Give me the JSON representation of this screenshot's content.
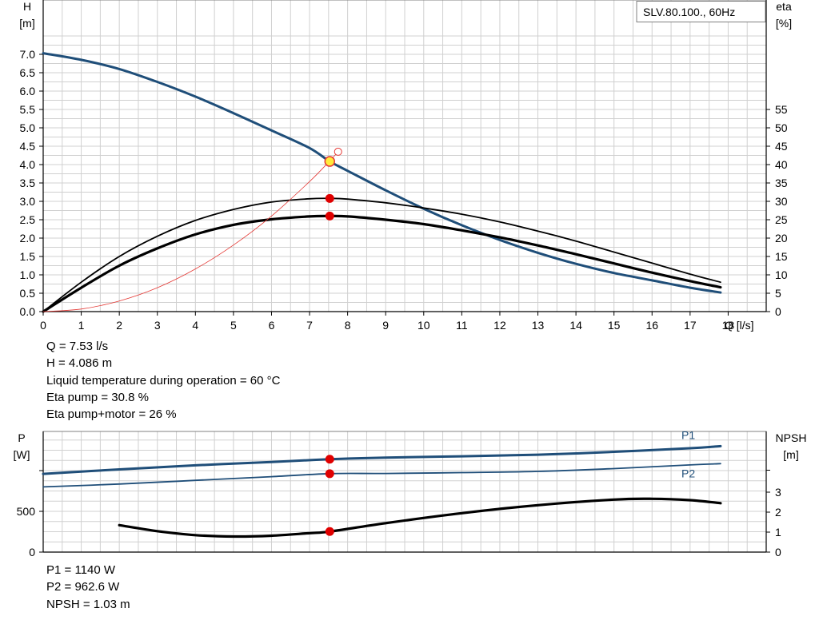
{
  "chart_data": [
    {
      "type": "line",
      "title": "SLV.80.100., 60Hz",
      "x_axis": {
        "label": "Q [l/s]",
        "range": [
          0,
          19
        ],
        "ticks": [
          0,
          1,
          2,
          3,
          4,
          5,
          6,
          7,
          8,
          9,
          10,
          11,
          12,
          13,
          14,
          15,
          16,
          17,
          18
        ]
      },
      "y_axis_left": {
        "label_line1": "H",
        "label_line2": "[m]",
        "range": [
          0,
          7.5
        ],
        "ticks": [
          "0.0",
          "0.5",
          "1.0",
          "1.5",
          "2.0",
          "2.5",
          "3.0",
          "3.5",
          "4.0",
          "4.5",
          "5.0",
          "5.5",
          "6.0",
          "6.5",
          "7.0"
        ]
      },
      "y_axis_right": {
        "label_line1": "eta",
        "label_line2": "[%]",
        "range": [
          0,
          75
        ],
        "ticks": [
          0,
          5,
          10,
          15,
          20,
          25,
          30,
          35,
          40,
          45,
          50,
          55
        ]
      },
      "grid": true,
      "legend": "top-right",
      "series": [
        {
          "axis": "left",
          "color": "#1f4e79",
          "width": 3,
          "x": [
            0,
            1,
            2,
            3,
            4,
            5,
            6,
            7,
            7.53,
            8,
            9,
            10,
            11,
            12,
            13,
            14,
            15,
            16,
            17,
            17.8
          ],
          "y": [
            7.03,
            6.85,
            6.6,
            6.25,
            5.85,
            5.4,
            4.93,
            4.45,
            4.086,
            3.83,
            3.3,
            2.8,
            2.35,
            1.95,
            1.6,
            1.3,
            1.05,
            0.85,
            0.65,
            0.52
          ]
        },
        {
          "axis": "right",
          "color": "#000000",
          "width": 1.8,
          "x": [
            0,
            1,
            2,
            3,
            4,
            5,
            6,
            7,
            7.53,
            8,
            9,
            10,
            11,
            12,
            13,
            14,
            15,
            16,
            17,
            17.8
          ],
          "y": [
            0,
            8,
            15,
            20.5,
            24.8,
            27.8,
            29.8,
            30.7,
            30.8,
            30.6,
            29.6,
            28.2,
            26.5,
            24.4,
            21.9,
            19.2,
            16.2,
            13.2,
            10.2,
            8
          ]
        },
        {
          "axis": "right",
          "color": "#000000",
          "width": 3.2,
          "x": [
            0,
            1,
            2,
            3,
            4,
            5,
            6,
            7,
            7.53,
            8,
            9,
            10,
            11,
            12,
            13,
            14,
            15,
            16,
            17,
            17.8
          ],
          "y": [
            0,
            6.5,
            12.5,
            17.2,
            21,
            23.6,
            25.1,
            25.9,
            26,
            25.9,
            25,
            23.8,
            22.1,
            20.2,
            18,
            15.6,
            13.1,
            10.6,
            8.3,
            6.6
          ]
        },
        {
          "axis": "left",
          "color": "#e53935",
          "width": 0.8,
          "x": [
            0,
            1,
            2,
            3,
            4,
            5,
            6,
            7,
            7.53,
            7.75
          ],
          "y": [
            0,
            0.07,
            0.29,
            0.65,
            1.16,
            1.81,
            2.6,
            3.54,
            4.1,
            4.35
          ]
        }
      ],
      "operating_point": {
        "x": 7.53,
        "h": 4.086,
        "eta_pump": 30.8,
        "eta_total": 26
      }
    },
    {
      "type": "line",
      "x_axis": {
        "range": [
          0,
          19
        ]
      },
      "y_axis_left": {
        "label_line1": "P",
        "label_line2": "[W]",
        "range": [
          0,
          1475
        ],
        "ticks": [
          0,
          500
        ]
      },
      "y_axis_right": {
        "label_line1": "NPSH",
        "label_line2": "[m]",
        "range": [
          0,
          5.9
        ],
        "ticks": [
          0,
          1,
          2,
          3
        ]
      },
      "grid": true,
      "series": [
        {
          "name": "P1",
          "axis": "left",
          "color": "#1f4e79",
          "width": 3,
          "x": [
            0,
            2,
            4,
            6,
            7.53,
            9,
            11,
            13,
            15,
            17,
            17.8
          ],
          "y": [
            960,
            1015,
            1065,
            1105,
            1140,
            1160,
            1175,
            1195,
            1230,
            1275,
            1300
          ]
        },
        {
          "name": "P2",
          "axis": "left",
          "color": "#1f4e79",
          "width": 1.8,
          "x": [
            0,
            2,
            4,
            6,
            7.53,
            9,
            11,
            13,
            15,
            17,
            17.8
          ],
          "y": [
            800,
            835,
            880,
            925,
            962.6,
            965,
            975,
            990,
            1025,
            1070,
            1085
          ]
        },
        {
          "axis": "right",
          "color": "#000000",
          "width": 3.2,
          "x": [
            2,
            3,
            4,
            5,
            6,
            7,
            7.53,
            9,
            11,
            13,
            15,
            16,
            17,
            17.8
          ],
          "y": [
            1.35,
            1.05,
            0.85,
            0.78,
            0.82,
            0.95,
            1.03,
            1.45,
            1.95,
            2.35,
            2.63,
            2.67,
            2.6,
            2.45
          ]
        }
      ],
      "operating_point": {
        "x": 7.53,
        "p1": 1140,
        "p2": 962.6,
        "npsh": 1.03
      }
    }
  ],
  "info_top": [
    "Q = 7.53 l/s",
    "H = 4.086 m",
    "Liquid temperature during operation = 60 °C",
    "Eta pump = 30.8 %",
    "Eta pump+motor = 26 %"
  ],
  "info_bottom": [
    "P1 = 1140 W",
    "P2 = 962.6 W",
    "NPSH = 1.03 m"
  ]
}
